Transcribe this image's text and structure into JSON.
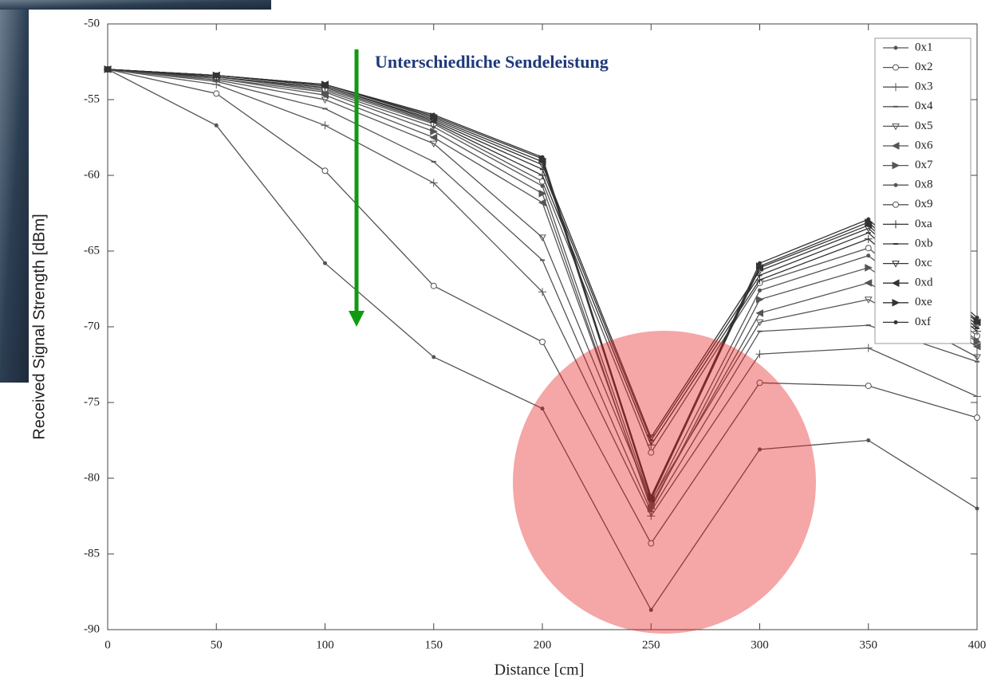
{
  "chart_data": {
    "type": "line",
    "x_label": "Distance [cm]",
    "y_label": "Received Signal Strength [dBm]",
    "annotation": "Unterschiedliche Sendeleistung",
    "x": [
      0,
      50,
      100,
      150,
      200,
      250,
      300,
      350,
      400
    ],
    "xlim": [
      0,
      400
    ],
    "xticks": [
      0,
      50,
      100,
      150,
      200,
      250,
      300,
      350,
      400
    ],
    "ylim": [
      -90,
      -50
    ],
    "yticks": [
      -90,
      -85,
      -80,
      -75,
      -70,
      -65,
      -60,
      -55,
      -50
    ],
    "legend": "upper right",
    "series": [
      {
        "name": "0x1",
        "color": "#555555",
        "values": [
          -53,
          -56.7,
          -65.8,
          -72,
          -75.4,
          -88.7,
          -78.1,
          -77.5,
          -82
        ]
      },
      {
        "name": "0x2",
        "color": "#555555",
        "values": [
          -53,
          -54.6,
          -59.7,
          -67.3,
          -71,
          -84.3,
          -73.7,
          -73.9,
          -76
        ]
      },
      {
        "name": "0x3",
        "color": "#555555",
        "values": [
          -53,
          -54,
          -56.7,
          -60.5,
          -67.7,
          -82.5,
          -71.8,
          -71.4,
          -74.6
        ]
      },
      {
        "name": "0x4",
        "color": "#555555",
        "values": [
          -53,
          -53.8,
          -55.6,
          -59.1,
          -65.6,
          -82.2,
          -70.3,
          -69.9,
          -72.3
        ]
      },
      {
        "name": "0x5",
        "color": "#555555",
        "values": [
          -53,
          -53.7,
          -55,
          -57.9,
          -64.1,
          -81.5,
          -69.7,
          -68.2,
          -72
        ]
      },
      {
        "name": "0x6",
        "color": "#555555",
        "values": [
          -53,
          -53.6,
          -54.7,
          -57.5,
          -61.8,
          -81.8,
          -69.1,
          -67.1,
          -71.3
        ]
      },
      {
        "name": "0x7",
        "color": "#555555",
        "values": [
          -53,
          -53.6,
          -54.5,
          -57.1,
          -61.2,
          -82,
          -68.2,
          -66.1,
          -71
        ]
      },
      {
        "name": "0x8",
        "color": "#555555",
        "values": [
          -53,
          -53.5,
          -54.4,
          -56.8,
          -60.7,
          -81.6,
          -67.6,
          -65.3,
          -70.9
        ]
      },
      {
        "name": "0x9",
        "color": "#555555",
        "values": [
          -53,
          -53.5,
          -54.3,
          -56.6,
          -60.4,
          -78.3,
          -67.1,
          -64.8,
          -70.6
        ]
      },
      {
        "name": "0xa",
        "color": "#333333",
        "values": [
          -53,
          -53.5,
          -54.2,
          -56.5,
          -60,
          -77.8,
          -66.9,
          -64.2,
          -70.3
        ]
      },
      {
        "name": "0xb",
        "color": "#333333",
        "values": [
          -53,
          -53.4,
          -54.1,
          -56.4,
          -59.6,
          -77.5,
          -66.6,
          -63.8,
          -70.1
        ]
      },
      {
        "name": "0xc",
        "color": "#333333",
        "values": [
          -53,
          -53.4,
          -54.1,
          -56.3,
          -59.3,
          -77.3,
          -66.3,
          -63.5,
          -69.9
        ]
      },
      {
        "name": "0xd",
        "color": "#333333",
        "values": [
          -53,
          -53.4,
          -54,
          -56.2,
          -59.1,
          -81.4,
          -66.1,
          -63.3,
          -69.7
        ]
      },
      {
        "name": "0xe",
        "color": "#333333",
        "values": [
          -53,
          -53.4,
          -54,
          -56.1,
          -58.9,
          -81.2,
          -66,
          -63.1,
          -69.6
        ]
      },
      {
        "name": "0xf",
        "color": "#333333",
        "values": [
          -53,
          -53.4,
          -54,
          -56,
          -58.8,
          -81.3,
          -65.8,
          -62.9,
          -69.4
        ]
      }
    ]
  }
}
